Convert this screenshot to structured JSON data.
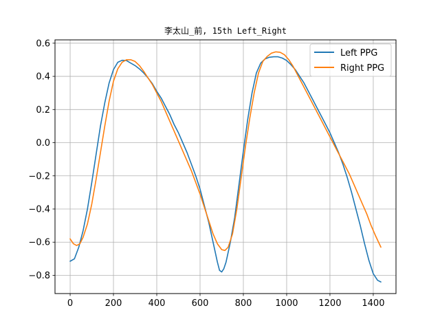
{
  "chart_data": {
    "type": "line",
    "title": "李太山_前, 15th Left_Right",
    "xlabel": "",
    "ylabel": "",
    "xlim": [
      -70,
      1505
    ],
    "ylim": [
      -0.91,
      0.62
    ],
    "xticks": [
      0,
      200,
      400,
      600,
      800,
      1000,
      1200,
      1400
    ],
    "yticks": [
      -0.8,
      -0.6,
      -0.4,
      -0.2,
      0.0,
      0.2,
      0.4,
      0.6
    ],
    "xtick_labels": [
      "0",
      "200",
      "400",
      "600",
      "800",
      "1000",
      "1200",
      "1400"
    ],
    "ytick_labels": [
      "−0.8",
      "−0.6",
      "−0.4",
      "−0.2",
      "0.0",
      "0.2",
      "0.4",
      "0.6"
    ],
    "grid": true,
    "legend_position": "top-right",
    "series": [
      {
        "name": "Left PPG",
        "color": "#1f77b4",
        "points": [
          [
            0,
            -0.715
          ],
          [
            20,
            -0.7
          ],
          [
            40,
            -0.63
          ],
          [
            60,
            -0.53
          ],
          [
            80,
            -0.4
          ],
          [
            100,
            -0.24
          ],
          [
            120,
            -0.07
          ],
          [
            140,
            0.1
          ],
          [
            160,
            0.24
          ],
          [
            180,
            0.36
          ],
          [
            200,
            0.44
          ],
          [
            220,
            0.485
          ],
          [
            240,
            0.497
          ],
          [
            260,
            0.495
          ],
          [
            280,
            0.48
          ],
          [
            300,
            0.465
          ],
          [
            320,
            0.445
          ],
          [
            340,
            0.42
          ],
          [
            360,
            0.39
          ],
          [
            380,
            0.355
          ],
          [
            400,
            0.31
          ],
          [
            420,
            0.27
          ],
          [
            440,
            0.22
          ],
          [
            460,
            0.17
          ],
          [
            480,
            0.11
          ],
          [
            500,
            0.06
          ],
          [
            520,
            0.0
          ],
          [
            540,
            -0.06
          ],
          [
            560,
            -0.13
          ],
          [
            580,
            -0.2
          ],
          [
            600,
            -0.28
          ],
          [
            620,
            -0.38
          ],
          [
            640,
            -0.48
          ],
          [
            660,
            -0.6
          ],
          [
            680,
            -0.72
          ],
          [
            690,
            -0.77
          ],
          [
            700,
            -0.78
          ],
          [
            710,
            -0.76
          ],
          [
            720,
            -0.72
          ],
          [
            740,
            -0.6
          ],
          [
            760,
            -0.45
          ],
          [
            780,
            -0.25
          ],
          [
            800,
            -0.05
          ],
          [
            820,
            0.14
          ],
          [
            840,
            0.3
          ],
          [
            860,
            0.42
          ],
          [
            880,
            0.48
          ],
          [
            900,
            0.505
          ],
          [
            920,
            0.515
          ],
          [
            940,
            0.518
          ],
          [
            960,
            0.518
          ],
          [
            980,
            0.51
          ],
          [
            1000,
            0.495
          ],
          [
            1020,
            0.47
          ],
          [
            1040,
            0.44
          ],
          [
            1060,
            0.4
          ],
          [
            1080,
            0.36
          ],
          [
            1100,
            0.31
          ],
          [
            1120,
            0.26
          ],
          [
            1140,
            0.21
          ],
          [
            1160,
            0.16
          ],
          [
            1180,
            0.11
          ],
          [
            1200,
            0.06
          ],
          [
            1220,
            0.0
          ],
          [
            1240,
            -0.06
          ],
          [
            1260,
            -0.13
          ],
          [
            1280,
            -0.21
          ],
          [
            1300,
            -0.3
          ],
          [
            1320,
            -0.4
          ],
          [
            1340,
            -0.5
          ],
          [
            1360,
            -0.61
          ],
          [
            1380,
            -0.71
          ],
          [
            1400,
            -0.79
          ],
          [
            1420,
            -0.83
          ],
          [
            1435,
            -0.84
          ]
        ]
      },
      {
        "name": "Right PPG",
        "color": "#ff7f0e",
        "points": [
          [
            0,
            -0.58
          ],
          [
            15,
            -0.61
          ],
          [
            30,
            -0.62
          ],
          [
            45,
            -0.61
          ],
          [
            60,
            -0.57
          ],
          [
            80,
            -0.49
          ],
          [
            100,
            -0.37
          ],
          [
            120,
            -0.22
          ],
          [
            140,
            -0.06
          ],
          [
            160,
            0.1
          ],
          [
            180,
            0.25
          ],
          [
            200,
            0.37
          ],
          [
            220,
            0.445
          ],
          [
            240,
            0.485
          ],
          [
            260,
            0.5
          ],
          [
            280,
            0.5
          ],
          [
            300,
            0.49
          ],
          [
            320,
            0.465
          ],
          [
            340,
            0.43
          ],
          [
            360,
            0.39
          ],
          [
            380,
            0.35
          ],
          [
            400,
            0.3
          ],
          [
            420,
            0.25
          ],
          [
            440,
            0.19
          ],
          [
            460,
            0.13
          ],
          [
            480,
            0.07
          ],
          [
            500,
            0.01
          ],
          [
            520,
            -0.05
          ],
          [
            540,
            -0.11
          ],
          [
            560,
            -0.17
          ],
          [
            580,
            -0.24
          ],
          [
            600,
            -0.31
          ],
          [
            620,
            -0.39
          ],
          [
            640,
            -0.47
          ],
          [
            660,
            -0.55
          ],
          [
            680,
            -0.61
          ],
          [
            700,
            -0.645
          ],
          [
            715,
            -0.65
          ],
          [
            730,
            -0.63
          ],
          [
            750,
            -0.55
          ],
          [
            770,
            -0.4
          ],
          [
            790,
            -0.21
          ],
          [
            810,
            -0.02
          ],
          [
            830,
            0.15
          ],
          [
            850,
            0.3
          ],
          [
            870,
            0.42
          ],
          [
            890,
            0.49
          ],
          [
            910,
            0.52
          ],
          [
            930,
            0.54
          ],
          [
            950,
            0.548
          ],
          [
            970,
            0.545
          ],
          [
            990,
            0.53
          ],
          [
            1010,
            0.5
          ],
          [
            1030,
            0.46
          ],
          [
            1050,
            0.41
          ],
          [
            1070,
            0.36
          ],
          [
            1090,
            0.31
          ],
          [
            1110,
            0.26
          ],
          [
            1130,
            0.21
          ],
          [
            1150,
            0.16
          ],
          [
            1170,
            0.11
          ],
          [
            1190,
            0.06
          ],
          [
            1210,
            0.01
          ],
          [
            1230,
            -0.04
          ],
          [
            1250,
            -0.09
          ],
          [
            1270,
            -0.14
          ],
          [
            1290,
            -0.19
          ],
          [
            1310,
            -0.25
          ],
          [
            1330,
            -0.31
          ],
          [
            1350,
            -0.37
          ],
          [
            1370,
            -0.43
          ],
          [
            1390,
            -0.5
          ],
          [
            1410,
            -0.56
          ],
          [
            1435,
            -0.63
          ]
        ]
      }
    ]
  }
}
